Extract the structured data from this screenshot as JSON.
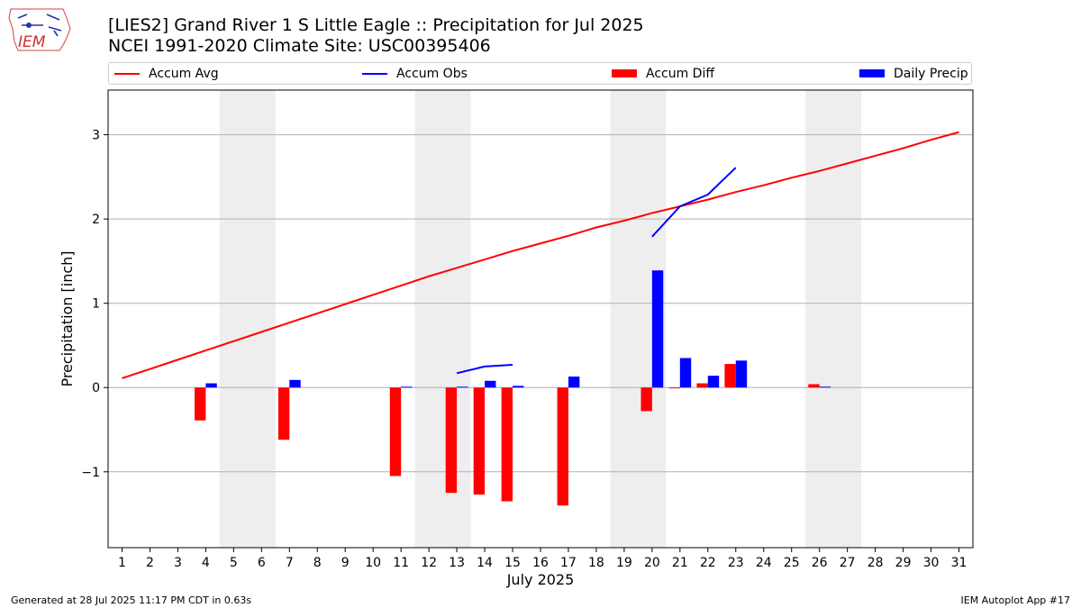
{
  "title_line1": "[LIES2] Grand River 1 S Little Eagle :: Precipitation for Jul 2025",
  "title_line2": "NCEI 1991-2020 Climate Site: USC00395406",
  "logo_text": "IEM",
  "footer_left": "Generated at 28 Jul 2025 11:17 PM CDT in 0.63s",
  "footer_right": "IEM Autoplot App #17",
  "colors": {
    "accum_avg": "#ff0000",
    "accum_obs": "#0000ff",
    "accum_diff": "#ff0000",
    "daily_precip": "#0000ff",
    "weekend_shade": "#eeeeee",
    "grid": "#b0b0b0"
  },
  "chart_data": {
    "type": "bar",
    "xlabel": "July 2025",
    "ylabel": "Precipitation [inch]",
    "xlim": [
      0.5,
      31.5
    ],
    "ylim": [
      -1.9,
      3.53
    ],
    "y_ticks": [
      -1,
      0,
      1,
      2,
      3
    ],
    "y_tick_labels": [
      "−1",
      "0",
      "1",
      "2",
      "3"
    ],
    "x_ticks": [
      1,
      2,
      3,
      4,
      5,
      6,
      7,
      8,
      9,
      10,
      11,
      12,
      13,
      14,
      15,
      16,
      17,
      18,
      19,
      20,
      21,
      22,
      23,
      24,
      25,
      26,
      27,
      28,
      29,
      30,
      31
    ],
    "grid": "horizontal",
    "legend_position": "top",
    "legend": [
      "Accum Avg",
      "Accum Obs",
      "Accum Diff",
      "Daily Precip"
    ],
    "weekend_shaded_spans": [
      [
        5,
        6
      ],
      [
        12,
        13
      ],
      [
        19,
        20
      ],
      [
        26,
        27
      ]
    ],
    "accum_avg": {
      "days": [
        1,
        2,
        3,
        4,
        5,
        6,
        7,
        8,
        9,
        10,
        11,
        12,
        13,
        14,
        15,
        16,
        17,
        18,
        19,
        20,
        21,
        22,
        23,
        24,
        25,
        26,
        27,
        28,
        29,
        30,
        31
      ],
      "values": [
        0.11,
        0.22,
        0.33,
        0.44,
        0.55,
        0.66,
        0.77,
        0.88,
        0.99,
        1.1,
        1.21,
        1.32,
        1.42,
        1.52,
        1.62,
        1.71,
        1.8,
        1.9,
        1.98,
        2.07,
        2.15,
        2.23,
        2.32,
        2.4,
        2.49,
        2.57,
        2.66,
        2.75,
        2.84,
        2.94,
        3.03
      ]
    },
    "accum_obs": {
      "segments": [
        {
          "days": [
            13,
            14,
            15
          ],
          "values": [
            0.17,
            0.25,
            0.27
          ]
        },
        {
          "days": [
            20,
            21,
            22,
            23
          ],
          "values": [
            1.79,
            2.15,
            2.29,
            2.61
          ]
        }
      ]
    },
    "accum_diff": {
      "days": [
        4,
        7,
        11,
        13,
        14,
        15,
        17,
        20,
        21,
        22,
        23,
        26
      ],
      "values": [
        -0.39,
        -0.62,
        -1.05,
        -1.25,
        -1.27,
        -1.35,
        -1.4,
        -0.28,
        -0.01,
        0.05,
        0.28,
        0.04
      ]
    },
    "daily_precip": {
      "days": [
        4,
        7,
        11,
        13,
        14,
        15,
        17,
        20,
        21,
        22,
        23,
        26
      ],
      "values": [
        0.05,
        0.09,
        0.01,
        0.01,
        0.08,
        0.02,
        0.13,
        1.39,
        0.35,
        0.14,
        0.32,
        0.01
      ]
    }
  }
}
